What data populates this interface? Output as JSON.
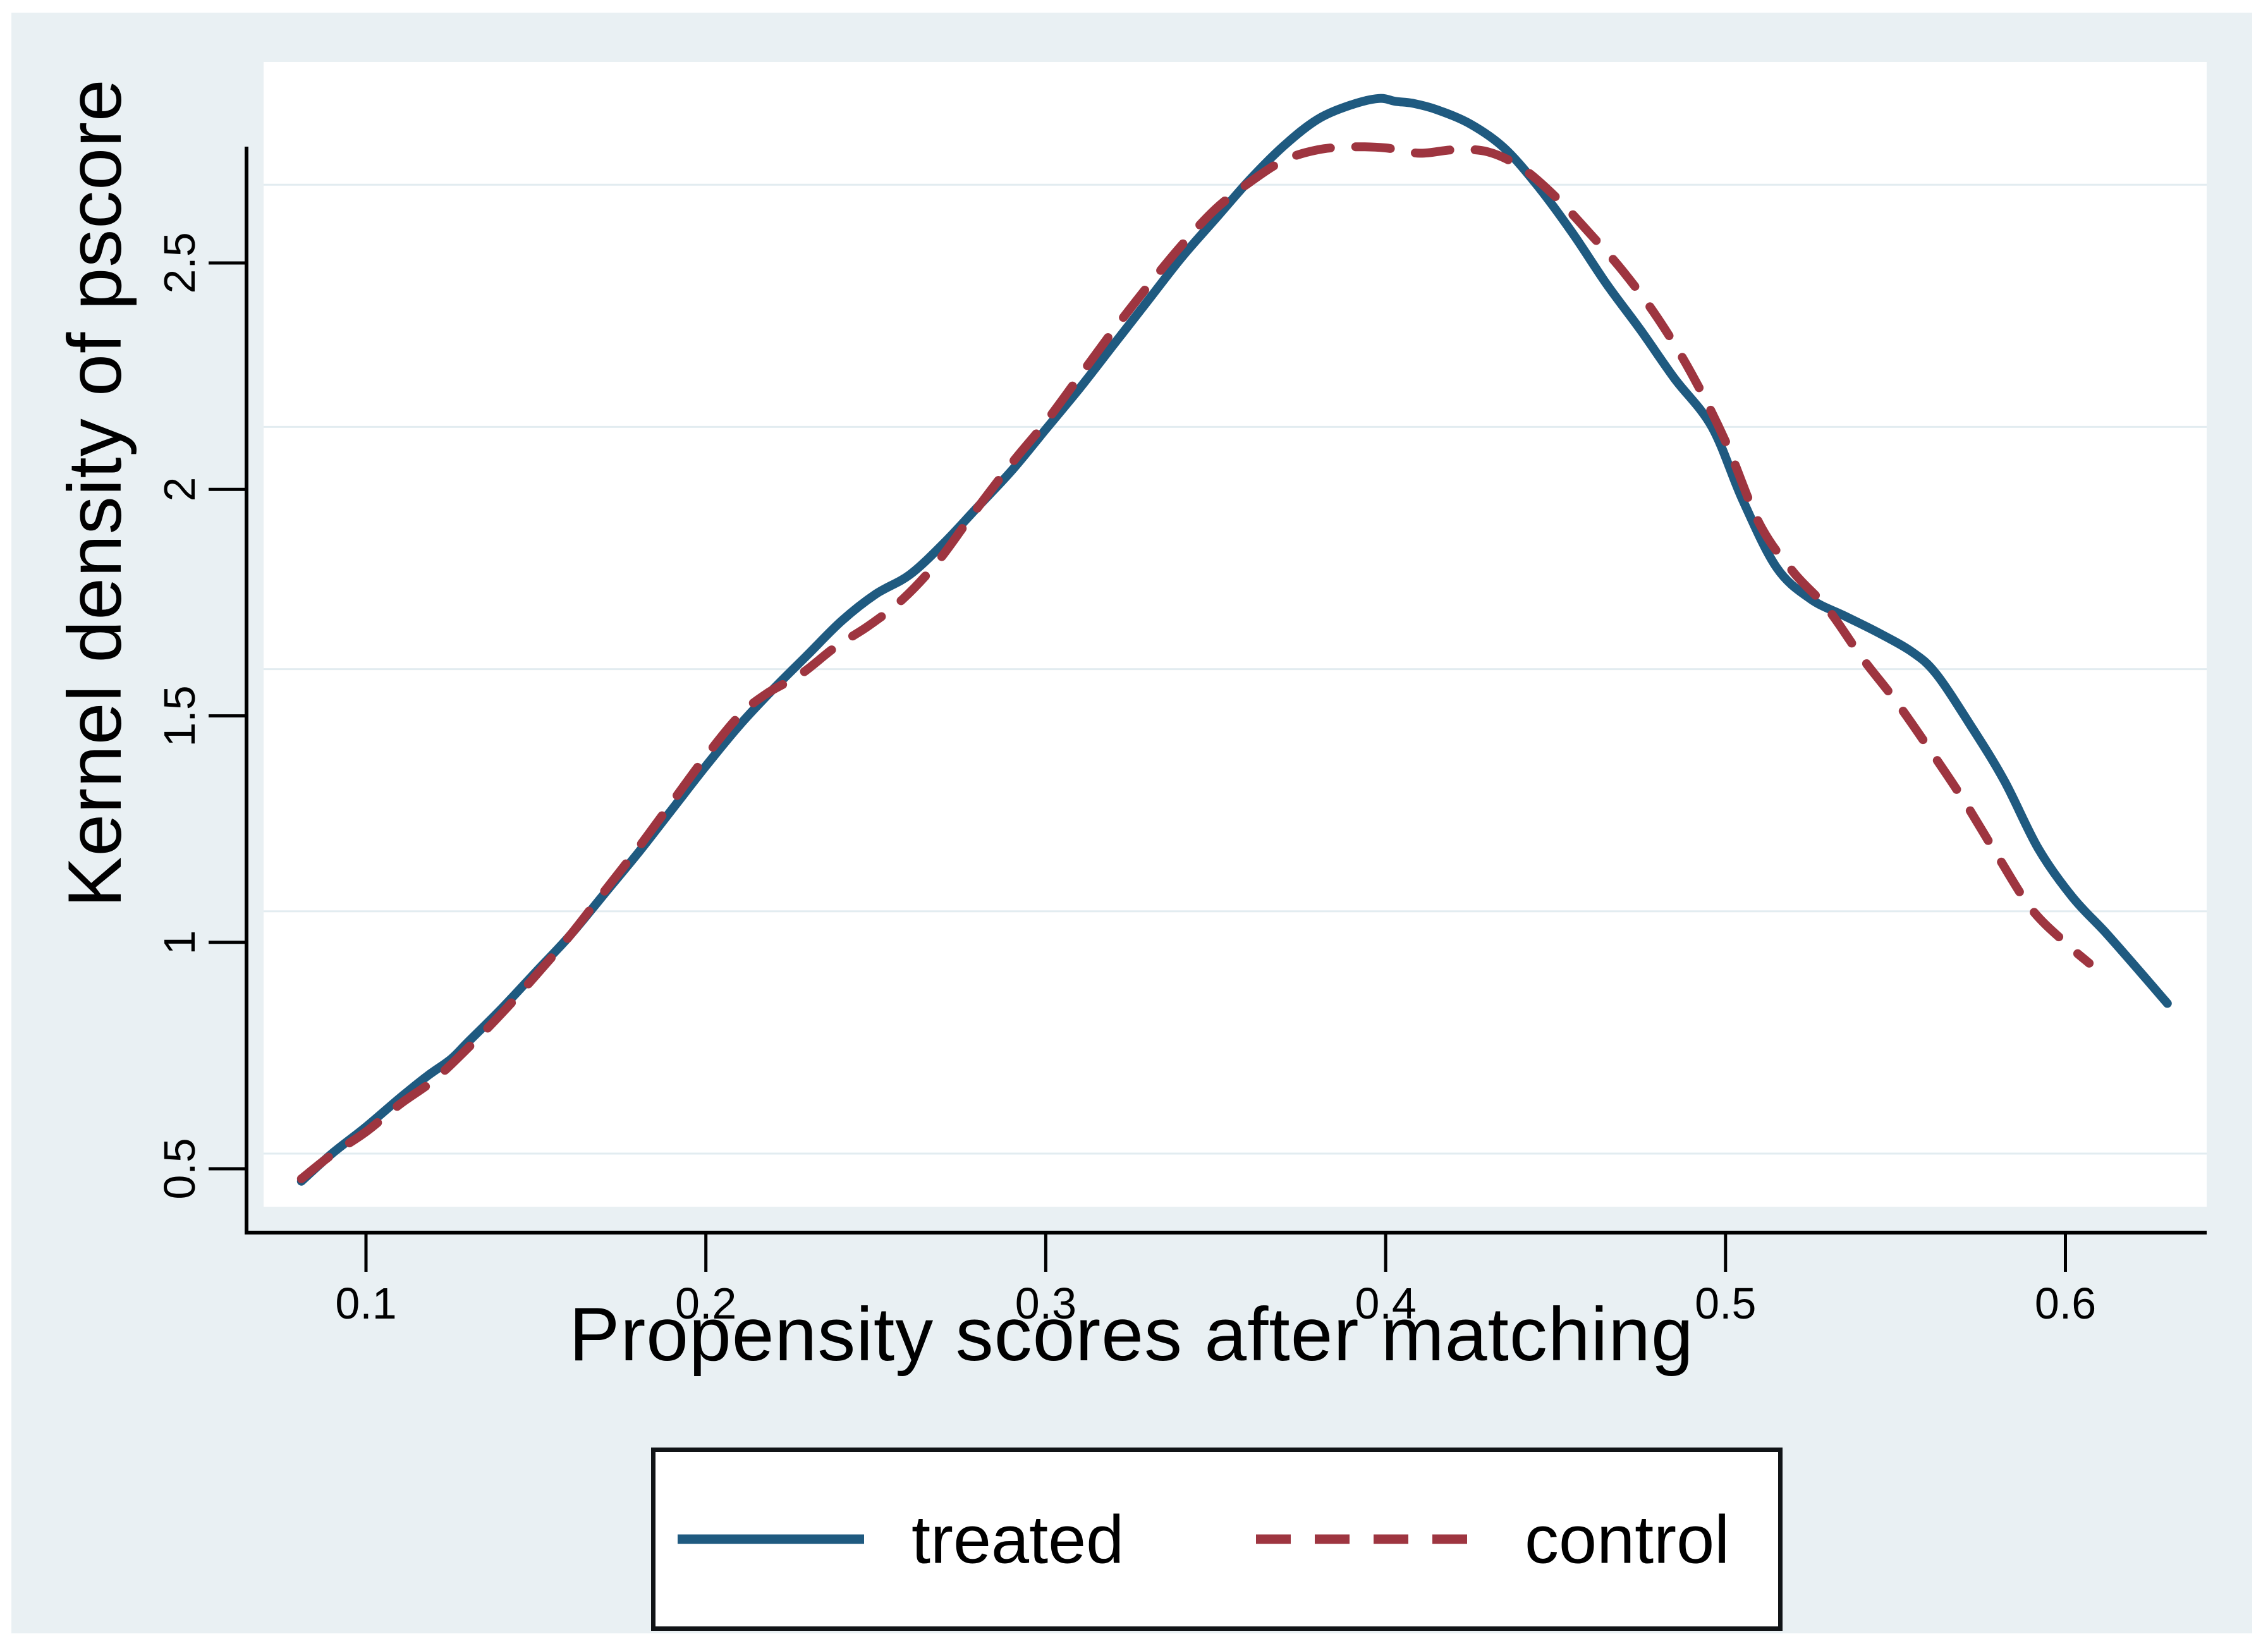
{
  "figure": {
    "background_color": "#E9F0F3",
    "plot_background_color": "#FFFFFF",
    "gridline_color": "#E2ECF0",
    "axis_color": "#000000",
    "legend_border_color": "#111417"
  },
  "chart_data": {
    "type": "line",
    "title": "",
    "xlabel": "Propensity scores after matching",
    "ylabel": "Kernel density of pscore",
    "xlim": [
      0.07,
      0.642
    ],
    "ylim": [
      0.39,
      2.75
    ],
    "grid": "horizontal",
    "legend_position": "bottom-center",
    "x_ticks": [
      0.1,
      0.2,
      0.3,
      0.4,
      0.5,
      0.6
    ],
    "x_tick_labels": [
      "0.1",
      "0.2",
      "0.3",
      "0.4",
      "0.5",
      "0.6"
    ],
    "y_ticks": [
      0.5,
      1,
      1.5,
      2,
      2.5
    ],
    "y_tick_labels": [
      "0.5",
      "1",
      "1.5",
      "2",
      "2.5"
    ],
    "series": [
      {
        "name": "treated",
        "color": "#1F5A80",
        "style": "solid",
        "line_width": 14,
        "points": [
          [
            0.081,
            0.443
          ],
          [
            0.09,
            0.5
          ],
          [
            0.1,
            0.555
          ],
          [
            0.11,
            0.615
          ],
          [
            0.118,
            0.66
          ],
          [
            0.125,
            0.695
          ],
          [
            0.13,
            0.73
          ],
          [
            0.14,
            0.8
          ],
          [
            0.15,
            0.875
          ],
          [
            0.16,
            0.95
          ],
          [
            0.17,
            1.035
          ],
          [
            0.18,
            1.12
          ],
          [
            0.19,
            1.21
          ],
          [
            0.2,
            1.3
          ],
          [
            0.21,
            1.385
          ],
          [
            0.22,
            1.46
          ],
          [
            0.23,
            1.53
          ],
          [
            0.24,
            1.6
          ],
          [
            0.25,
            1.655
          ],
          [
            0.26,
            1.695
          ],
          [
            0.27,
            1.76
          ],
          [
            0.28,
            1.835
          ],
          [
            0.29,
            1.91
          ],
          [
            0.3,
            1.995
          ],
          [
            0.31,
            2.08
          ],
          [
            0.32,
            2.17
          ],
          [
            0.33,
            2.26
          ],
          [
            0.34,
            2.35
          ],
          [
            0.35,
            2.43
          ],
          [
            0.36,
            2.51
          ],
          [
            0.37,
            2.58
          ],
          [
            0.38,
            2.635
          ],
          [
            0.39,
            2.665
          ],
          [
            0.398,
            2.678
          ],
          [
            0.403,
            2.672
          ],
          [
            0.408,
            2.668
          ],
          [
            0.415,
            2.655
          ],
          [
            0.425,
            2.625
          ],
          [
            0.435,
            2.575
          ],
          [
            0.445,
            2.495
          ],
          [
            0.455,
            2.4
          ],
          [
            0.465,
            2.295
          ],
          [
            0.475,
            2.2
          ],
          [
            0.485,
            2.1
          ],
          [
            0.496,
            2.0
          ],
          [
            0.505,
            1.85
          ],
          [
            0.515,
            1.71
          ],
          [
            0.525,
            1.645
          ],
          [
            0.535,
            1.61
          ],
          [
            0.545,
            1.575
          ],
          [
            0.555,
            1.535
          ],
          [
            0.562,
            1.49
          ],
          [
            0.572,
            1.385
          ],
          [
            0.582,
            1.27
          ],
          [
            0.592,
            1.13
          ],
          [
            0.602,
            1.03
          ],
          [
            0.612,
            0.955
          ],
          [
            0.622,
            0.875
          ],
          [
            0.63,
            0.81
          ]
        ]
      },
      {
        "name": "control",
        "color": "#9E3540",
        "style": "dashed",
        "line_width": 14,
        "dash_pattern": [
          55,
          40
        ],
        "points": [
          [
            0.081,
            0.448
          ],
          [
            0.09,
            0.498
          ],
          [
            0.1,
            0.545
          ],
          [
            0.11,
            0.602
          ],
          [
            0.12,
            0.652
          ],
          [
            0.13,
            0.718
          ],
          [
            0.14,
            0.79
          ],
          [
            0.15,
            0.868
          ],
          [
            0.16,
            0.95
          ],
          [
            0.17,
            1.04
          ],
          [
            0.18,
            1.13
          ],
          [
            0.19,
            1.225
          ],
          [
            0.2,
            1.32
          ],
          [
            0.21,
            1.405
          ],
          [
            0.218,
            1.45
          ],
          [
            0.228,
            1.49
          ],
          [
            0.238,
            1.545
          ],
          [
            0.248,
            1.59
          ],
          [
            0.258,
            1.645
          ],
          [
            0.268,
            1.72
          ],
          [
            0.278,
            1.815
          ],
          [
            0.29,
            1.925
          ],
          [
            0.3,
            2.01
          ],
          [
            0.31,
            2.105
          ],
          [
            0.32,
            2.2
          ],
          [
            0.33,
            2.29
          ],
          [
            0.34,
            2.375
          ],
          [
            0.35,
            2.45
          ],
          [
            0.36,
            2.505
          ],
          [
            0.37,
            2.55
          ],
          [
            0.38,
            2.572
          ],
          [
            0.39,
            2.578
          ],
          [
            0.4,
            2.576
          ],
          [
            0.41,
            2.565
          ],
          [
            0.42,
            2.572
          ],
          [
            0.43,
            2.568
          ],
          [
            0.44,
            2.535
          ],
          [
            0.45,
            2.475
          ],
          [
            0.46,
            2.4
          ],
          [
            0.47,
            2.32
          ],
          [
            0.48,
            2.225
          ],
          [
            0.49,
            2.11
          ],
          [
            0.5,
            1.97
          ],
          [
            0.51,
            1.8
          ],
          [
            0.52,
            1.7
          ],
          [
            0.53,
            1.625
          ],
          [
            0.54,
            1.525
          ],
          [
            0.55,
            1.435
          ],
          [
            0.56,
            1.335
          ],
          [
            0.57,
            1.23
          ],
          [
            0.58,
            1.115
          ],
          [
            0.59,
            1.005
          ],
          [
            0.6,
            0.935
          ],
          [
            0.607,
            0.893
          ]
        ]
      }
    ]
  }
}
